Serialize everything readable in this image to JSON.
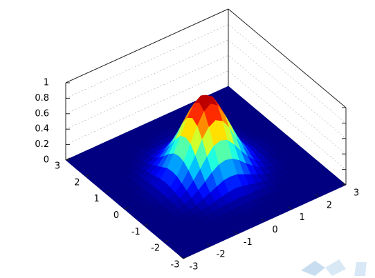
{
  "chart_data": {
    "type": "surface",
    "x": [
      -3,
      -2.75,
      -2.5,
      -2.25,
      -2,
      -1.75,
      -1.5,
      -1.25,
      -1,
      -0.75,
      -0.5,
      -0.25,
      0,
      0.25,
      0.5,
      0.75,
      1,
      1.25,
      1.5,
      1.75,
      2,
      2.25,
      2.5,
      2.75,
      3
    ],
    "y": [
      -3,
      -2.75,
      -2.5,
      -2.25,
      -2,
      -1.75,
      -1.5,
      -1.25,
      -1,
      -0.75,
      -0.5,
      -0.25,
      0,
      0.25,
      0.5,
      0.75,
      1,
      1.25,
      1.5,
      1.75,
      2,
      2.25,
      2.5,
      2.75,
      3
    ],
    "z": [
      [
        0,
        0,
        0,
        0,
        0,
        0,
        0,
        0,
        0,
        0,
        0,
        0,
        0,
        0,
        0,
        0,
        0,
        0,
        0,
        0,
        0,
        0,
        0,
        0,
        0
      ],
      [
        0,
        0,
        0,
        0,
        0,
        0,
        0,
        0,
        0,
        0,
        0,
        0,
        0,
        0,
        0,
        0,
        0,
        0,
        0,
        0,
        0,
        0,
        0,
        0,
        0
      ],
      [
        0,
        0,
        0,
        0,
        0,
        0,
        0,
        0,
        0,
        0,
        0,
        0,
        0,
        0,
        0,
        0,
        0,
        0,
        0,
        0,
        0,
        0,
        0,
        0,
        0
      ],
      [
        0,
        0,
        0,
        0,
        0,
        0,
        0,
        0,
        0,
        0,
        0,
        0.01,
        0.01,
        0.01,
        0,
        0,
        0,
        0,
        0,
        0,
        0,
        0,
        0,
        0,
        0
      ],
      [
        0,
        0,
        0,
        0,
        0,
        0,
        0,
        0,
        0.01,
        0.01,
        0.01,
        0.02,
        0.02,
        0.02,
        0.01,
        0.01,
        0.01,
        0,
        0,
        0,
        0,
        0,
        0,
        0,
        0
      ],
      [
        0,
        0,
        0,
        0,
        0,
        0,
        0,
        0.01,
        0.02,
        0.03,
        0.04,
        0.04,
        0.05,
        0.04,
        0.04,
        0.03,
        0.02,
        0.01,
        0,
        0,
        0,
        0,
        0,
        0,
        0
      ],
      [
        0,
        0,
        0,
        0,
        0,
        0,
        0.01,
        0.02,
        0.04,
        0.06,
        0.08,
        0.1,
        0.11,
        0.1,
        0.08,
        0.06,
        0.04,
        0.02,
        0.01,
        0,
        0,
        0,
        0,
        0,
        0
      ],
      [
        0,
        0,
        0,
        0,
        0,
        0.01,
        0.02,
        0.04,
        0.08,
        0.12,
        0.16,
        0.2,
        0.21,
        0.2,
        0.16,
        0.12,
        0.08,
        0.04,
        0.02,
        0.01,
        0,
        0,
        0,
        0,
        0
      ],
      [
        0,
        0,
        0,
        0,
        0.01,
        0.02,
        0.04,
        0.08,
        0.14,
        0.21,
        0.29,
        0.35,
        0.37,
        0.35,
        0.29,
        0.21,
        0.14,
        0.08,
        0.04,
        0.02,
        0.01,
        0,
        0,
        0,
        0
      ],
      [
        0,
        0,
        0,
        0,
        0.01,
        0.03,
        0.06,
        0.12,
        0.21,
        0.32,
        0.44,
        0.54,
        0.57,
        0.54,
        0.44,
        0.32,
        0.21,
        0.12,
        0.06,
        0.03,
        0.01,
        0,
        0,
        0,
        0
      ],
      [
        0,
        0,
        0,
        0,
        0.01,
        0.04,
        0.08,
        0.16,
        0.29,
        0.44,
        0.61,
        0.73,
        0.78,
        0.73,
        0.61,
        0.44,
        0.29,
        0.16,
        0.08,
        0.04,
        0.01,
        0,
        0,
        0,
        0
      ],
      [
        0,
        0,
        0,
        0.01,
        0.02,
        0.04,
        0.1,
        0.2,
        0.35,
        0.54,
        0.73,
        0.88,
        0.94,
        0.88,
        0.73,
        0.54,
        0.35,
        0.2,
        0.1,
        0.04,
        0.02,
        0.01,
        0,
        0,
        0
      ],
      [
        0,
        0,
        0,
        0.01,
        0.02,
        0.05,
        0.11,
        0.21,
        0.37,
        0.57,
        0.78,
        0.94,
        1,
        0.94,
        0.78,
        0.57,
        0.37,
        0.21,
        0.11,
        0.05,
        0.02,
        0.01,
        0,
        0,
        0
      ],
      [
        0,
        0,
        0,
        0.01,
        0.02,
        0.04,
        0.1,
        0.2,
        0.35,
        0.54,
        0.73,
        0.88,
        0.94,
        0.88,
        0.73,
        0.54,
        0.35,
        0.2,
        0.1,
        0.04,
        0.02,
        0.01,
        0,
        0,
        0
      ],
      [
        0,
        0,
        0,
        0,
        0.01,
        0.04,
        0.08,
        0.16,
        0.29,
        0.44,
        0.61,
        0.73,
        0.78,
        0.73,
        0.61,
        0.44,
        0.29,
        0.16,
        0.08,
        0.04,
        0.01,
        0,
        0,
        0,
        0
      ],
      [
        0,
        0,
        0,
        0,
        0.01,
        0.03,
        0.06,
        0.12,
        0.21,
        0.32,
        0.44,
        0.54,
        0.57,
        0.54,
        0.44,
        0.32,
        0.21,
        0.12,
        0.06,
        0.03,
        0.01,
        0,
        0,
        0,
        0
      ],
      [
        0,
        0,
        0,
        0,
        0.01,
        0.02,
        0.04,
        0.08,
        0.14,
        0.21,
        0.29,
        0.35,
        0.37,
        0.35,
        0.29,
        0.21,
        0.14,
        0.08,
        0.04,
        0.02,
        0.01,
        0,
        0,
        0,
        0
      ],
      [
        0,
        0,
        0,
        0,
        0,
        0.01,
        0.02,
        0.04,
        0.08,
        0.12,
        0.16,
        0.2,
        0.21,
        0.2,
        0.16,
        0.12,
        0.08,
        0.04,
        0.02,
        0.01,
        0,
        0,
        0,
        0,
        0
      ],
      [
        0,
        0,
        0,
        0,
        0,
        0,
        0.01,
        0.02,
        0.04,
        0.06,
        0.08,
        0.1,
        0.11,
        0.1,
        0.08,
        0.06,
        0.04,
        0.02,
        0.01,
        0,
        0,
        0,
        0,
        0,
        0
      ],
      [
        0,
        0,
        0,
        0,
        0,
        0,
        0,
        0.01,
        0.02,
        0.03,
        0.04,
        0.04,
        0.05,
        0.04,
        0.04,
        0.03,
        0.02,
        0.01,
        0,
        0,
        0,
        0,
        0,
        0,
        0
      ],
      [
        0,
        0,
        0,
        0,
        0,
        0,
        0,
        0,
        0.01,
        0.01,
        0.01,
        0.02,
        0.02,
        0.02,
        0.01,
        0.01,
        0.01,
        0,
        0,
        0,
        0,
        0,
        0,
        0,
        0
      ],
      [
        0,
        0,
        0,
        0,
        0,
        0,
        0,
        0,
        0,
        0,
        0,
        0.01,
        0.01,
        0.01,
        0,
        0,
        0,
        0,
        0,
        0,
        0,
        0,
        0,
        0,
        0
      ],
      [
        0,
        0,
        0,
        0,
        0,
        0,
        0,
        0,
        0,
        0,
        0,
        0,
        0,
        0,
        0,
        0,
        0,
        0,
        0,
        0,
        0,
        0,
        0,
        0,
        0
      ],
      [
        0,
        0,
        0,
        0,
        0,
        0,
        0,
        0,
        0,
        0,
        0,
        0,
        0,
        0,
        0,
        0,
        0,
        0,
        0,
        0,
        0,
        0,
        0,
        0,
        0
      ],
      [
        0,
        0,
        0,
        0,
        0,
        0,
        0,
        0,
        0,
        0,
        0,
        0,
        0,
        0,
        0,
        0,
        0,
        0,
        0,
        0,
        0,
        0,
        0,
        0,
        0
      ]
    ],
    "xlim": [
      -3,
      3
    ],
    "ylim": [
      -3,
      3
    ],
    "zlim": [
      0,
      1
    ],
    "xticks": [
      -3,
      -2,
      -1,
      0,
      1,
      2,
      3
    ],
    "yticks": [
      -3,
      -2,
      -1,
      0,
      1,
      2,
      3
    ],
    "zticks": [
      0,
      0.2,
      0.4,
      0.6,
      0.8,
      1
    ],
    "colormap": "jet",
    "grid": true
  }
}
